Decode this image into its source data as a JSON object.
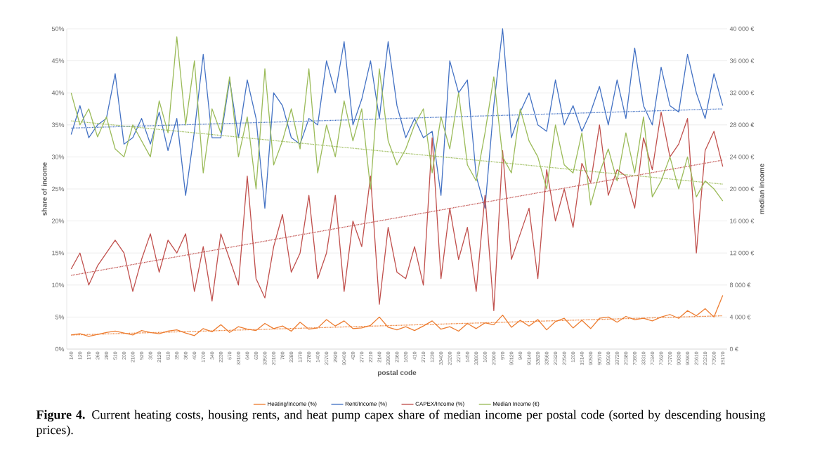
{
  "chart_data": {
    "type": "line",
    "xlabel": "postal code",
    "ylabel": "share of income",
    "y2label": "median income",
    "categories": [
      "140",
      "120",
      "170",
      "260",
      "280",
      "510",
      "200",
      "2100",
      "520",
      "300",
      "2120",
      "810",
      "350",
      "360",
      "400",
      "1700",
      "340",
      "2230",
      "670",
      "33100",
      "640",
      "630",
      "33500",
      "20100",
      "780",
      "2280",
      "1370",
      "2780",
      "1400",
      "20700",
      "2920",
      "90400",
      "420",
      "2770",
      "2210",
      "2140",
      "33900",
      "2360",
      "1630",
      "410",
      "2710",
      "1230",
      "33400",
      "20200",
      "2270",
      "1450",
      "33800",
      "1600",
      "20900",
      "970",
      "90120",
      "940",
      "90140",
      "33820",
      "33560",
      "20320",
      "20540",
      "1200",
      "15140",
      "90530",
      "90570",
      "90500",
      "33720",
      "20380",
      "70800",
      "33310",
      "70340",
      "70620",
      "70700",
      "90830",
      "90900",
      "20610",
      "20210",
      "70500",
      "15170"
    ],
    "series": [
      {
        "name": "Heating/Income (%)",
        "color": "#ed7d31",
        "values": [
          2.2,
          2.4,
          2.0,
          2.3,
          2.6,
          2.8,
          2.5,
          2.2,
          2.9,
          2.6,
          2.4,
          2.8,
          3.0,
          2.5,
          2.1,
          3.2,
          2.7,
          3.8,
          2.6,
          3.5,
          3.1,
          2.9,
          4.0,
          3.2,
          3.6,
          2.8,
          4.2,
          3.1,
          3.3,
          4.6,
          3.6,
          4.4,
          3.2,
          3.3,
          3.7,
          5.0,
          3.4,
          3.0,
          3.5,
          2.9,
          3.6,
          4.4,
          3.1,
          3.5,
          2.8,
          4.0,
          3.2,
          4.1,
          3.8,
          5.3,
          3.4,
          4.5,
          3.6,
          4.6,
          3.0,
          4.3,
          4.8,
          3.3,
          4.5,
          3.2,
          4.8,
          5.0,
          4.2,
          5.1,
          4.6,
          4.8,
          4.4,
          5.0,
          5.4,
          4.8,
          6.0,
          5.2,
          6.3,
          5.0,
          8.4
        ]
      },
      {
        "name": "Rent/Income (%)",
        "color": "#4472c4",
        "values": [
          33.5,
          38,
          33,
          35,
          36,
          43,
          32,
          33,
          36,
          32,
          37,
          31,
          36,
          24,
          34,
          46,
          33,
          33,
          42,
          33,
          42,
          36,
          22,
          40,
          38,
          33,
          32,
          36,
          35,
          45,
          40,
          48,
          35,
          39,
          45,
          36,
          48,
          38,
          33,
          36,
          33,
          34,
          24,
          45,
          40,
          42,
          27,
          22,
          38,
          50,
          33,
          37,
          40,
          35,
          34,
          42,
          35,
          38,
          34,
          37,
          41,
          35,
          42,
          36,
          47,
          38,
          35,
          44,
          38,
          37,
          46,
          40,
          36,
          43,
          38
        ]
      },
      {
        "name": "CAPEX/Income (%)",
        "color": "#c0504d",
        "values": [
          12.5,
          15,
          10,
          13,
          15,
          17,
          15,
          9,
          14,
          18,
          12,
          17,
          15,
          18,
          9,
          16,
          7.5,
          18,
          14,
          10,
          27,
          11,
          8,
          16,
          21,
          12,
          15,
          24,
          11,
          15,
          24,
          9,
          20,
          16,
          27,
          7,
          19,
          12,
          11,
          16,
          10,
          33,
          11,
          22,
          14,
          19,
          9,
          24,
          6,
          31,
          14,
          18,
          22,
          11,
          28,
          20,
          25,
          19,
          29,
          26,
          35,
          24,
          28,
          27,
          22,
          33,
          28,
          37,
          30,
          32,
          36,
          15,
          31,
          34,
          28.5
        ]
      },
      {
        "name": "Median Income (€)",
        "color": "#9bbb59",
        "axis": "y2",
        "values": [
          32000,
          28000,
          30000,
          26500,
          29000,
          25000,
          24000,
          28000,
          26000,
          24000,
          31000,
          27000,
          39000,
          28000,
          36000,
          22000,
          30000,
          27000,
          34000,
          24000,
          29000,
          20000,
          35000,
          23000,
          26000,
          30000,
          25000,
          35000,
          22000,
          28000,
          24000,
          31000,
          26000,
          30000,
          20000,
          35000,
          26000,
          23000,
          25000,
          28000,
          30000,
          22000,
          29000,
          25000,
          32000,
          23000,
          21000,
          27000,
          34000,
          24000,
          22000,
          30000,
          26000,
          24000,
          20000,
          28000,
          23000,
          22000,
          27000,
          18000,
          22000,
          25000,
          21000,
          27000,
          22000,
          29000,
          19000,
          21000,
          24000,
          20000,
          24000,
          19000,
          21000,
          20000,
          18500
        ]
      },
      {
        "type": "line",
        "color": "#ed7d31",
        "line_style": "dotted",
        "values": [
          2.2,
          null,
          null,
          null,
          null,
          null,
          null,
          null,
          null,
          null,
          null,
          null,
          null,
          null,
          null,
          null,
          null,
          null,
          null,
          null,
          null,
          null,
          null,
          null,
          null,
          null,
          null,
          null,
          null,
          null,
          null,
          null,
          null,
          null,
          null,
          null,
          null,
          null,
          null,
          null,
          null,
          null,
          null,
          null,
          null,
          null,
          null,
          null,
          null,
          null,
          null,
          null,
          null,
          null,
          null,
          null,
          null,
          null,
          null,
          null,
          null,
          null,
          null,
          null,
          null,
          null,
          null,
          null,
          null,
          null,
          null,
          null,
          null,
          null,
          5.2
        ]
      },
      {
        "type": "line",
        "color": "#4472c4",
        "line_style": "dotted",
        "values": [
          34.5,
          null,
          null,
          null,
          null,
          null,
          null,
          null,
          null,
          null,
          null,
          null,
          null,
          null,
          null,
          null,
          null,
          null,
          null,
          null,
          null,
          null,
          null,
          null,
          null,
          null,
          null,
          null,
          null,
          null,
          null,
          null,
          null,
          null,
          null,
          null,
          null,
          null,
          null,
          null,
          null,
          null,
          null,
          null,
          null,
          null,
          null,
          null,
          null,
          null,
          null,
          null,
          null,
          null,
          null,
          null,
          null,
          null,
          null,
          null,
          null,
          null,
          null,
          null,
          null,
          null,
          null,
          null,
          null,
          null,
          null,
          null,
          null,
          null,
          37.5
        ]
      },
      {
        "type": "line",
        "color": "#c0504d",
        "line_style": "dotted",
        "values": [
          11.5,
          null,
          null,
          null,
          null,
          null,
          null,
          null,
          null,
          null,
          null,
          null,
          null,
          null,
          null,
          null,
          null,
          null,
          null,
          null,
          null,
          null,
          null,
          null,
          null,
          null,
          null,
          null,
          null,
          null,
          null,
          null,
          null,
          null,
          null,
          null,
          null,
          null,
          null,
          null,
          null,
          null,
          null,
          null,
          null,
          null,
          null,
          null,
          null,
          null,
          null,
          null,
          null,
          null,
          null,
          null,
          null,
          null,
          null,
          null,
          null,
          null,
          null,
          null,
          null,
          null,
          null,
          null,
          null,
          null,
          null,
          null,
          null,
          null,
          29.5
        ]
      },
      {
        "type": "line",
        "color": "#9bbb59",
        "line_style": "dotted",
        "axis": "y2",
        "values": [
          28500,
          null,
          null,
          null,
          null,
          null,
          null,
          null,
          null,
          null,
          null,
          null,
          null,
          null,
          null,
          null,
          null,
          null,
          null,
          null,
          null,
          null,
          null,
          null,
          null,
          null,
          null,
          null,
          null,
          null,
          null,
          null,
          null,
          null,
          null,
          null,
          null,
          null,
          null,
          null,
          null,
          null,
          null,
          null,
          null,
          null,
          null,
          null,
          null,
          null,
          null,
          null,
          null,
          null,
          null,
          null,
          null,
          null,
          null,
          null,
          null,
          null,
          null,
          null,
          null,
          null,
          null,
          null,
          null,
          null,
          null,
          null,
          null,
          null,
          20600
        ]
      }
    ],
    "ylim": [
      0,
      50
    ],
    "yticks": [
      {
        "value": 0,
        "label": "0%"
      },
      {
        "value": 5,
        "label": "5%"
      },
      {
        "value": 10,
        "label": "10%"
      },
      {
        "value": 15,
        "label": "15%"
      },
      {
        "value": 20,
        "label": "20%"
      },
      {
        "value": 25,
        "label": "25%"
      },
      {
        "value": 30,
        "label": "30%"
      },
      {
        "value": 35,
        "label": "35%"
      },
      {
        "value": 40,
        "label": "40%"
      },
      {
        "value": 45,
        "label": "45%"
      },
      {
        "value": 50,
        "label": "50%"
      }
    ],
    "y2lim": [
      0,
      40000
    ],
    "y2ticks": [
      {
        "value": 0,
        "label": "0 €"
      },
      {
        "value": 4000,
        "label": "4 000 €"
      },
      {
        "value": 8000,
        "label": "8 000 €"
      },
      {
        "value": 12000,
        "label": "12 000 €"
      },
      {
        "value": 16000,
        "label": "16 000 €"
      },
      {
        "value": 20000,
        "label": "20 000 €"
      },
      {
        "value": 24000,
        "label": "24 000 €"
      },
      {
        "value": 28000,
        "label": "28 000 €"
      },
      {
        "value": 32000,
        "label": "32 000 €"
      },
      {
        "value": 36000,
        "label": "36 000 €"
      },
      {
        "value": 40000,
        "label": "40 000 €"
      }
    ],
    "grid": "y",
    "legend": "bottom",
    "annotations": [
      "**Figure 4.** Current heating costs, housing rents, and heat pump capex share of median income per postal code (sorted by descending housing prices)."
    ]
  }
}
